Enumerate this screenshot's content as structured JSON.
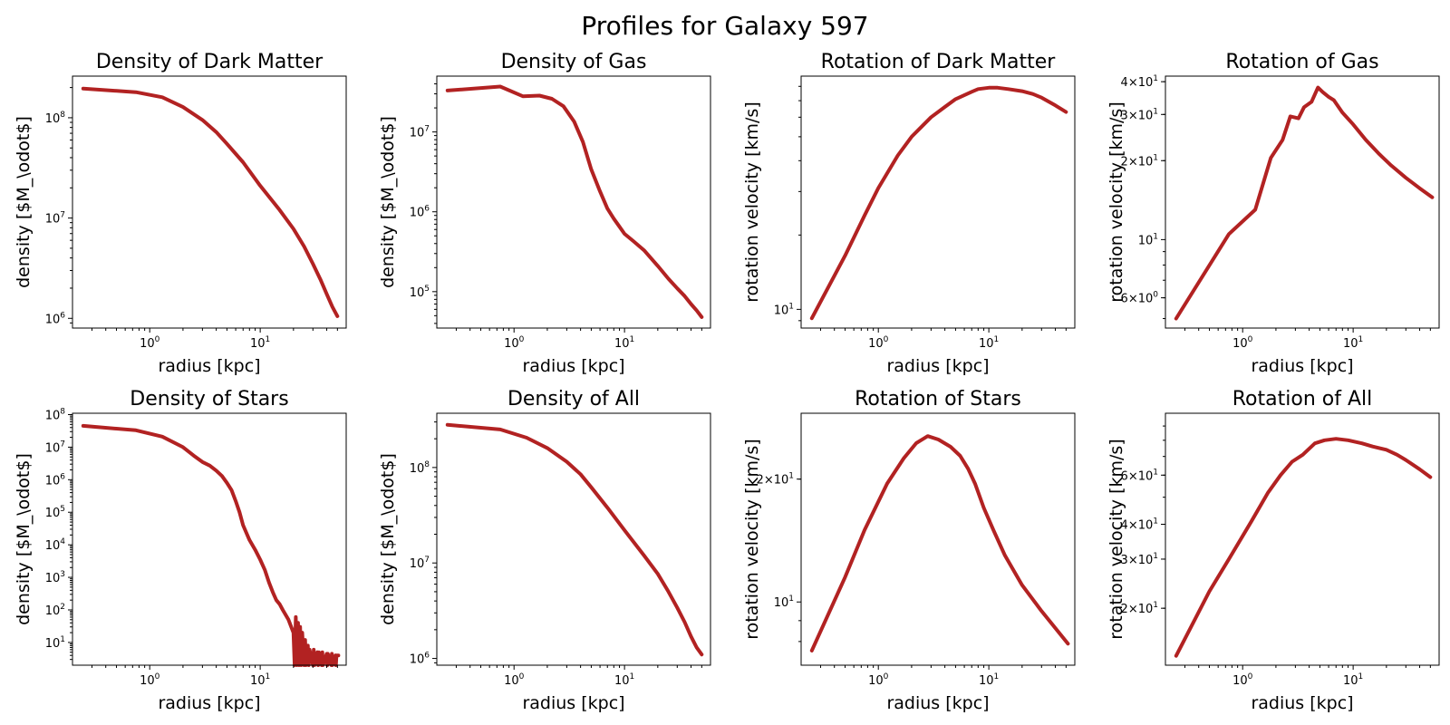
{
  "figure": {
    "title": "Profiles for Galaxy 597",
    "line_color": "#b22222"
  },
  "chart_data": [
    {
      "type": "line",
      "title": "Density of Dark Matter",
      "xlabel": "radius [kpc]",
      "ylabel": "density [$M_\\odot$]",
      "xscale": "log",
      "yscale": "log",
      "xlim": [
        0.2,
        60
      ],
      "ylim": [
        800000,
        260000000
      ],
      "x_ticks": [
        {
          "v": 1,
          "b": "10",
          "e": "0"
        },
        {
          "v": 10,
          "b": "10",
          "e": "1"
        }
      ],
      "y_ticks": [
        {
          "v": 1000000,
          "b": "10",
          "e": "6"
        },
        {
          "v": 10000000,
          "b": "10",
          "e": "7"
        },
        {
          "v": 100000000,
          "b": "10",
          "e": "8"
        }
      ],
      "series": [
        {
          "x": [
            0.25,
            0.75,
            1.3,
            2,
            3,
            4,
            5,
            7,
            10,
            15,
            20,
            25,
            30,
            35,
            40,
            45,
            50
          ],
          "y": [
            195000000,
            180000000,
            160000000,
            128000000,
            95000000,
            72000000,
            55000000,
            36000000,
            21000000,
            12000000,
            7800000,
            5200000,
            3500000,
            2450000,
            1750000,
            1300000,
            1050000
          ]
        }
      ]
    },
    {
      "type": "line",
      "title": "Density of Gas",
      "xlabel": "radius [kpc]",
      "ylabel": "density [$M_\\odot$]",
      "xscale": "log",
      "yscale": "log",
      "xlim": [
        0.2,
        60
      ],
      "ylim": [
        35000,
        50000000
      ],
      "x_ticks": [
        {
          "v": 1,
          "b": "10",
          "e": "0"
        },
        {
          "v": 10,
          "b": "10",
          "e": "1"
        }
      ],
      "y_ticks": [
        {
          "v": 100000,
          "b": "10",
          "e": "5"
        },
        {
          "v": 1000000,
          "b": "10",
          "e": "6"
        },
        {
          "v": 10000000,
          "b": "10",
          "e": "7"
        }
      ],
      "series": [
        {
          "x": [
            0.25,
            0.75,
            1.2,
            1.7,
            2.2,
            2.8,
            3.5,
            4.2,
            5,
            6,
            7,
            8,
            9,
            10,
            12,
            15,
            20,
            25,
            30,
            35,
            40,
            45,
            50
          ],
          "y": [
            33000000,
            37000000,
            28000000,
            28500000,
            26000000,
            21000000,
            13500000,
            7500000,
            3400000,
            1800000,
            1100000,
            820000,
            650000,
            530000,
            430000,
            330000,
            210000,
            145000,
            110000,
            88000,
            70000,
            58000,
            48000
          ]
        }
      ]
    },
    {
      "type": "line",
      "title": "Rotation of Dark Matter",
      "xlabel": "radius [kpc]",
      "ylabel": "rotation velocity [km/s]",
      "xscale": "log",
      "yscale": "log",
      "xlim": [
        0.2,
        60
      ],
      "ylim": [
        8.4,
        88
      ],
      "x_ticks": [
        {
          "v": 1,
          "b": "10",
          "e": "0"
        },
        {
          "v": 10,
          "b": "10",
          "e": "1"
        }
      ],
      "y_ticks": [
        {
          "v": 10,
          "b": "10",
          "e": "1"
        }
      ],
      "series": [
        {
          "x": [
            0.25,
            0.5,
            0.75,
            1,
            1.5,
            2,
            3,
            4,
            5,
            7,
            8,
            10,
            12,
            15,
            20,
            25,
            30,
            40,
            50
          ],
          "y": [
            9.2,
            16.5,
            24,
            31,
            42,
            50,
            60,
            66,
            71,
            76,
            78,
            79,
            79,
            78,
            76.5,
            74.5,
            72,
            67,
            63
          ]
        }
      ]
    },
    {
      "type": "line",
      "title": "Rotation of Gas",
      "xlabel": "radius [kpc]",
      "ylabel": "rotation velocity [km/s]",
      "xscale": "log",
      "yscale": "log",
      "xlim": [
        0.2,
        60
      ],
      "ylim": [
        4.6,
        42
      ],
      "x_ticks": [
        {
          "v": 1,
          "b": "10",
          "e": "0"
        },
        {
          "v": 10,
          "b": "10",
          "e": "1"
        }
      ],
      "y_ticks": [
        {
          "v": 6,
          "b": "6×10",
          "e": "0"
        },
        {
          "v": 10,
          "b": "10",
          "e": "1"
        },
        {
          "v": 20,
          "b": "2×10",
          "e": "1"
        },
        {
          "v": 30,
          "b": "3×10",
          "e": "1"
        },
        {
          "v": 40,
          "b": "4×10",
          "e": "1"
        }
      ],
      "series": [
        {
          "x": [
            0.25,
            0.75,
            1.3,
            1.8,
            2.3,
            2.7,
            3.2,
            3.6,
            4.2,
            4.8,
            5.3,
            6,
            6.7,
            8,
            10,
            13,
            17,
            22,
            30,
            40,
            52
          ],
          "y": [
            5.0,
            10.5,
            13.0,
            20.5,
            24.0,
            29.5,
            29.0,
            32.0,
            33.5,
            38.0,
            36.5,
            35.0,
            34.0,
            30.5,
            27.5,
            24.0,
            21.3,
            19.2,
            17.2,
            15.7,
            14.5
          ]
        }
      ]
    },
    {
      "type": "line",
      "title": "Density of Stars",
      "xlabel": "radius [kpc]",
      "ylabel": "density [$M_\\odot$]",
      "xscale": "log",
      "yscale": "log",
      "xlim": [
        0.2,
        60
      ],
      "ylim": [
        2,
        110000000
      ],
      "x_ticks": [
        {
          "v": 1,
          "b": "10",
          "e": "0"
        },
        {
          "v": 10,
          "b": "10",
          "e": "1"
        }
      ],
      "y_ticks": [
        {
          "v": 10,
          "b": "10",
          "e": "1"
        },
        {
          "v": 100,
          "b": "10",
          "e": "2"
        },
        {
          "v": 1000,
          "b": "10",
          "e": "3"
        },
        {
          "v": 10000,
          "b": "10",
          "e": "4"
        },
        {
          "v": 100000,
          "b": "10",
          "e": "5"
        },
        {
          "v": 1000000,
          "b": "10",
          "e": "6"
        },
        {
          "v": 10000000,
          "b": "10",
          "e": "7"
        },
        {
          "v": 100000000,
          "b": "10",
          "e": "8"
        }
      ],
      "series": [
        {
          "x": [
            0.25,
            0.75,
            1.3,
            2,
            2.5,
            3,
            3.5,
            4,
            4.5,
            5,
            5.5,
            6,
            6.5,
            7,
            8,
            9,
            10,
            11,
            12,
            13,
            14,
            15,
            16,
            18,
            20,
            20.5,
            21,
            21.5,
            22,
            22.5,
            23,
            23.5,
            24,
            25,
            25.5,
            26,
            27,
            27.5,
            28,
            30,
            30.5,
            31,
            33,
            33.5,
            34,
            36,
            36.5,
            37,
            40,
            40.5,
            41,
            44,
            44.5,
            45,
            48,
            48.5,
            49,
            51
          ],
          "y": [
            45000000,
            33000000,
            21000000,
            10000000,
            5500000,
            3500000,
            2700000,
            1900000,
            1300000,
            800000,
            480000,
            220000,
            100000,
            40000,
            14000,
            7000,
            3500,
            1700,
            700,
            350,
            200,
            150,
            100,
            50,
            20,
            2,
            60,
            2,
            40,
            2,
            30,
            2,
            20,
            2,
            12,
            2,
            8,
            2,
            6,
            2,
            6,
            2,
            5,
            2,
            5,
            2,
            5,
            2,
            4.5,
            2,
            4.5,
            2,
            4.5,
            2,
            4,
            2,
            4,
            4
          ]
        }
      ]
    },
    {
      "type": "line",
      "title": "Density of All",
      "xlabel": "radius [kpc]",
      "ylabel": "density [$M_\\odot$]",
      "xscale": "log",
      "yscale": "log",
      "xlim": [
        0.2,
        60
      ],
      "ylim": [
        850000,
        370000000
      ],
      "x_ticks": [
        {
          "v": 1,
          "b": "10",
          "e": "0"
        },
        {
          "v": 10,
          "b": "10",
          "e": "1"
        }
      ],
      "y_ticks": [
        {
          "v": 1000000,
          "b": "10",
          "e": "6"
        },
        {
          "v": 10000000,
          "b": "10",
          "e": "7"
        },
        {
          "v": 100000000,
          "b": "10",
          "e": "8"
        }
      ],
      "series": [
        {
          "x": [
            0.25,
            0.75,
            1.3,
            2,
            3,
            4,
            5,
            7,
            10,
            15,
            20,
            25,
            30,
            35,
            40,
            45,
            50
          ],
          "y": [
            280000000,
            250000000,
            205000000,
            160000000,
            115000000,
            85000000,
            62000000,
            38000000,
            22000000,
            12000000,
            7700000,
            5000000,
            3400000,
            2400000,
            1700000,
            1300000,
            1100000
          ]
        }
      ]
    },
    {
      "type": "line",
      "title": "Rotation of Stars",
      "xlabel": "radius [kpc]",
      "ylabel": "rotation velocity [km/s]",
      "xscale": "log",
      "yscale": "log",
      "xlim": [
        0.2,
        60
      ],
      "ylim": [
        7,
        29
      ],
      "x_ticks": [
        {
          "v": 1,
          "b": "10",
          "e": "0"
        },
        {
          "v": 10,
          "b": "10",
          "e": "1"
        }
      ],
      "y_ticks": [
        {
          "v": 10,
          "b": "10",
          "e": "1"
        },
        {
          "v": 20,
          "b": "2×10",
          "e": "1"
        }
      ],
      "series": [
        {
          "x": [
            0.25,
            0.5,
            0.75,
            1.2,
            1.7,
            2.2,
            2.8,
            3.5,
            4.5,
            5.5,
            6.5,
            7.5,
            9,
            11,
            14,
            20,
            30,
            52
          ],
          "y": [
            7.6,
            11.5,
            15,
            19.5,
            22.5,
            24.5,
            25.5,
            25,
            24,
            22.8,
            21.2,
            19.5,
            17,
            15,
            13,
            11,
            9.5,
            7.9
          ]
        }
      ]
    },
    {
      "type": "line",
      "title": "Rotation of All",
      "xlabel": "radius [kpc]",
      "ylabel": "rotation velocity [km/s]",
      "xscale": "log",
      "yscale": "log",
      "xlim": [
        0.2,
        60
      ],
      "ylim": [
        12.5,
        100
      ],
      "x_ticks": [
        {
          "v": 1,
          "b": "10",
          "e": "0"
        },
        {
          "v": 10,
          "b": "10",
          "e": "1"
        }
      ],
      "y_ticks": [
        {
          "v": 20,
          "b": "2×10",
          "e": "1"
        },
        {
          "v": 30,
          "b": "3×10",
          "e": "1"
        },
        {
          "v": 40,
          "b": "4×10",
          "e": "1"
        },
        {
          "v": 60,
          "b": "6×10",
          "e": "1"
        }
      ],
      "series": [
        {
          "x": [
            0.25,
            0.5,
            0.75,
            1.2,
            1.7,
            2.2,
            2.8,
            3.5,
            4.5,
            5.5,
            7,
            9,
            12,
            15,
            20,
            25,
            30,
            40,
            50
          ],
          "y": [
            13.5,
            23,
            30,
            41,
            52,
            60,
            67,
            71,
            78,
            80,
            81,
            80,
            78,
            76,
            74,
            71,
            68,
            63,
            59
          ]
        }
      ]
    }
  ]
}
